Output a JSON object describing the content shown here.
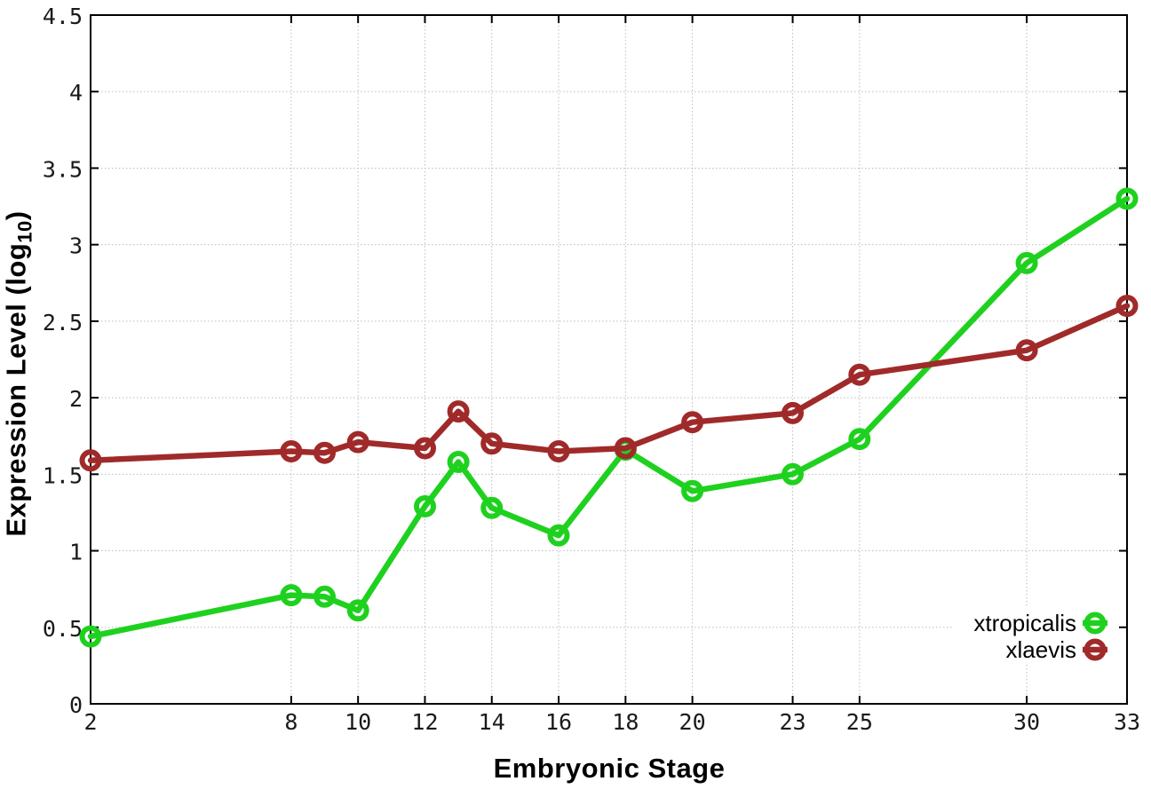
{
  "labels": {
    "xlabel": "Embryonic Stage",
    "ylabel_main": "Expression Level (log",
    "ylabel_sub": "10",
    "ylabel_close": ")"
  },
  "colors": {
    "background": "#ffffff",
    "border": "#000000",
    "grid": "#bdbdbd",
    "tick_label": "#1a1a1a",
    "xtropicalis_green": "#1fd11f",
    "xlaevis_red": "#a02a2a"
  },
  "chart_data": {
    "type": "line",
    "title": "",
    "xlabel": "Embryonic Stage",
    "ylabel": "Expression Level (log10)",
    "xlim": [
      2,
      33
    ],
    "ylim": [
      0,
      4.5
    ],
    "grid": true,
    "marker": "open-circle",
    "legend_position": "bottom-right",
    "legend_entries": [
      "xtropicalis",
      "xlaevis"
    ],
    "x_ticks": [
      2,
      8,
      10,
      12,
      14,
      16,
      18,
      20,
      23,
      25,
      30,
      33
    ],
    "y_ticks": [
      0,
      0.5,
      1,
      1.5,
      2,
      2.5,
      3,
      3.5,
      4,
      4.5
    ],
    "y_tick_labels": [
      "0",
      "0.5",
      "1",
      "1.5",
      "2",
      "2.5",
      "3",
      "3.5",
      "4",
      "4.5"
    ],
    "x": [
      2,
      8,
      9,
      10,
      12,
      13,
      14,
      16,
      18,
      20,
      23,
      25,
      30,
      33
    ],
    "series": [
      {
        "name": "xtropicalis",
        "color": "#1fd11f",
        "values": [
          0.44,
          0.71,
          0.7,
          0.61,
          1.29,
          1.58,
          1.28,
          1.1,
          1.66,
          1.39,
          1.5,
          1.73,
          2.88,
          3.3
        ]
      },
      {
        "name": "xlaevis",
        "color": "#a02a2a",
        "values": [
          1.59,
          1.65,
          1.64,
          1.71,
          1.67,
          1.91,
          1.7,
          1.65,
          1.67,
          1.84,
          1.9,
          2.15,
          2.31,
          2.6
        ]
      }
    ]
  }
}
